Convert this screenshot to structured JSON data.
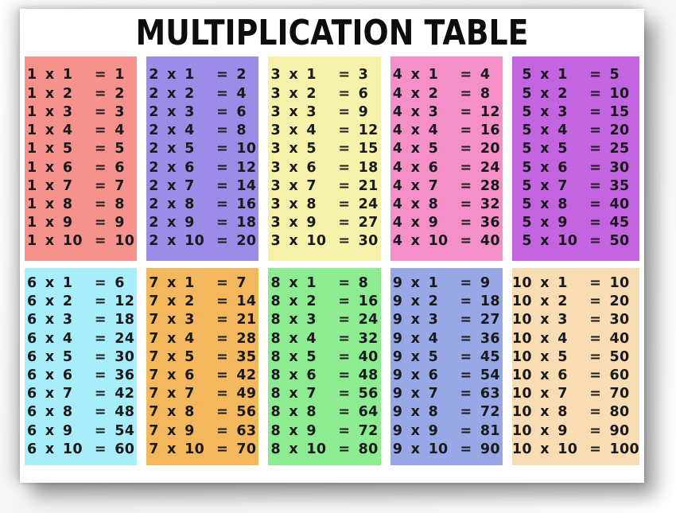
{
  "title": "MULTIPLICATION TABLE",
  "colors": {
    "page_background": "#ffffff",
    "gap": "#ffffff",
    "title_text": "#0d0d0d",
    "equation_text": "#1a1a1c"
  },
  "tables": [
    {
      "n": 1,
      "label": "1 times table",
      "color": "#f5928e",
      "rows": [
        {
          "expr": "1 x 1",
          "result": "= 1"
        },
        {
          "expr": "1 x 2",
          "result": "= 2"
        },
        {
          "expr": "1 x 3",
          "result": "= 3"
        },
        {
          "expr": "1 x 4",
          "result": "= 4"
        },
        {
          "expr": "1 x 5",
          "result": "= 5"
        },
        {
          "expr": "1 x 6",
          "result": "= 6"
        },
        {
          "expr": "1 x 7",
          "result": "= 7"
        },
        {
          "expr": "1 x 8",
          "result": "= 8"
        },
        {
          "expr": "1 x 9",
          "result": "= 9"
        },
        {
          "expr": "1 x 10",
          "result": "= 10"
        }
      ]
    },
    {
      "n": 2,
      "label": "2 times table",
      "color": "#9c8ce8",
      "rows": [
        {
          "expr": "2 x 1",
          "result": "= 2"
        },
        {
          "expr": "2 x 2",
          "result": "= 4"
        },
        {
          "expr": "2 x 3",
          "result": "= 6"
        },
        {
          "expr": "2 x 4",
          "result": "= 8"
        },
        {
          "expr": "2 x 5",
          "result": "= 10"
        },
        {
          "expr": "2 x 6",
          "result": "= 12"
        },
        {
          "expr": "2 x 7",
          "result": "= 14"
        },
        {
          "expr": "2 x 8",
          "result": "= 16"
        },
        {
          "expr": "2 x 9",
          "result": "= 18"
        },
        {
          "expr": "2 x 10",
          "result": "= 20"
        }
      ]
    },
    {
      "n": 3,
      "label": "3 times table",
      "color": "#f6f2ab",
      "rows": [
        {
          "expr": "3 x 1",
          "result": "= 3"
        },
        {
          "expr": "3 x 2",
          "result": "= 6"
        },
        {
          "expr": "3 x 3",
          "result": "= 9"
        },
        {
          "expr": "3 x 4",
          "result": "= 12"
        },
        {
          "expr": "3 x 5",
          "result": "= 15"
        },
        {
          "expr": "3 x 6",
          "result": "= 18"
        },
        {
          "expr": "3 x 7",
          "result": "= 21"
        },
        {
          "expr": "3 x 8",
          "result": "= 24"
        },
        {
          "expr": "3 x 9",
          "result": "= 27"
        },
        {
          "expr": "3 x 10",
          "result": "= 30"
        }
      ]
    },
    {
      "n": 4,
      "label": "4 times table",
      "color": "#f58fc8",
      "rows": [
        {
          "expr": "4 x 1",
          "result": "= 4"
        },
        {
          "expr": "4 x 2",
          "result": "= 8"
        },
        {
          "expr": "4 x 3",
          "result": "= 12"
        },
        {
          "expr": "4 x 4",
          "result": "= 16"
        },
        {
          "expr": "4 x 5",
          "result": "= 20"
        },
        {
          "expr": "4 x 6",
          "result": "= 24"
        },
        {
          "expr": "4 x 7",
          "result": "= 28"
        },
        {
          "expr": "4 x 8",
          "result": "= 32"
        },
        {
          "expr": "4 x 9",
          "result": "= 36"
        },
        {
          "expr": "4 x 10",
          "result": "= 40"
        }
      ]
    },
    {
      "n": 5,
      "label": "5 times table",
      "color": "#c364e0",
      "rows": [
        {
          "expr": "5 x 1",
          "result": "= 5"
        },
        {
          "expr": "5 x 2",
          "result": "= 10"
        },
        {
          "expr": "5 x 3",
          "result": "= 15"
        },
        {
          "expr": "5 x 4",
          "result": "= 20"
        },
        {
          "expr": "5 x 5",
          "result": "= 25"
        },
        {
          "expr": "5 x 6",
          "result": "= 30"
        },
        {
          "expr": "5 x 7",
          "result": "= 35"
        },
        {
          "expr": "5 x 8",
          "result": "= 40"
        },
        {
          "expr": "5 x 9",
          "result": "= 45"
        },
        {
          "expr": "5 x 10",
          "result": "= 50"
        }
      ]
    },
    {
      "n": 6,
      "label": "6 times table",
      "color": "#a8eefa",
      "rows": [
        {
          "expr": "6 x 1",
          "result": "= 6"
        },
        {
          "expr": "6 x 2",
          "result": "= 12"
        },
        {
          "expr": "6 x 3",
          "result": "= 18"
        },
        {
          "expr": "6 x 4",
          "result": "= 24"
        },
        {
          "expr": "6 x 5",
          "result": "= 30"
        },
        {
          "expr": "6 x 6",
          "result": "= 36"
        },
        {
          "expr": "6 x 7",
          "result": "= 42"
        },
        {
          "expr": "6 x 8",
          "result": "= 48"
        },
        {
          "expr": "6 x 9",
          "result": "= 54"
        },
        {
          "expr": "6 x 10",
          "result": "= 60"
        }
      ]
    },
    {
      "n": 7,
      "label": "7 times table",
      "color": "#f3b75e",
      "rows": [
        {
          "expr": "7 x 1",
          "result": "= 7"
        },
        {
          "expr": "7 x 2",
          "result": "= 14"
        },
        {
          "expr": "7 x 3",
          "result": "= 21"
        },
        {
          "expr": "7 x 4",
          "result": "= 28"
        },
        {
          "expr": "7 x 5",
          "result": "= 35"
        },
        {
          "expr": "7 x 6",
          "result": "= 42"
        },
        {
          "expr": "7 x 7",
          "result": "= 49"
        },
        {
          "expr": "7 x 8",
          "result": "= 56"
        },
        {
          "expr": "7 x 9",
          "result": "= 63"
        },
        {
          "expr": "7 x 10",
          "result": "= 70"
        }
      ]
    },
    {
      "n": 8,
      "label": "8 times table",
      "color": "#8deb91",
      "rows": [
        {
          "expr": "8 x 1",
          "result": "= 8"
        },
        {
          "expr": "8 x 2",
          "result": "= 16"
        },
        {
          "expr": "8 x 3",
          "result": "= 24"
        },
        {
          "expr": "8 x 4",
          "result": "= 32"
        },
        {
          "expr": "8 x 5",
          "result": "= 40"
        },
        {
          "expr": "8 x 6",
          "result": "= 48"
        },
        {
          "expr": "8 x 7",
          "result": "= 56"
        },
        {
          "expr": "8 x 8",
          "result": "= 64"
        },
        {
          "expr": "8 x 9",
          "result": "= 72"
        },
        {
          "expr": "8 x 10",
          "result": "= 80"
        }
      ]
    },
    {
      "n": 9,
      "label": "9 times table",
      "color": "#98a7e6",
      "rows": [
        {
          "expr": "9 x 1",
          "result": "= 9"
        },
        {
          "expr": "9 x 2",
          "result": "= 18"
        },
        {
          "expr": "9 x 3",
          "result": "= 27"
        },
        {
          "expr": "9 x 4",
          "result": "= 36"
        },
        {
          "expr": "9 x 5",
          "result": "= 45"
        },
        {
          "expr": "9 x 6",
          "result": "= 54"
        },
        {
          "expr": "9 x 7",
          "result": "= 63"
        },
        {
          "expr": "9 x 8",
          "result": "= 72"
        },
        {
          "expr": "9 x 9",
          "result": "= 81"
        },
        {
          "expr": "9 x 10",
          "result": "= 90"
        }
      ]
    },
    {
      "n": 10,
      "label": "10 times table",
      "color": "#f8dcb3",
      "rows": [
        {
          "expr": "10 x 1",
          "result": "= 10"
        },
        {
          "expr": "10 x 2",
          "result": "= 20"
        },
        {
          "expr": "10 x 3",
          "result": "= 30"
        },
        {
          "expr": "10 x 4",
          "result": "= 40"
        },
        {
          "expr": "10 x 5",
          "result": "= 50"
        },
        {
          "expr": "10 x 6",
          "result": "= 60"
        },
        {
          "expr": "10 x 7",
          "result": "= 70"
        },
        {
          "expr": "10 x 8",
          "result": "= 80"
        },
        {
          "expr": "10 x 9",
          "result": "= 90"
        },
        {
          "expr": "10 x 10",
          "result": "= 100"
        }
      ]
    }
  ]
}
